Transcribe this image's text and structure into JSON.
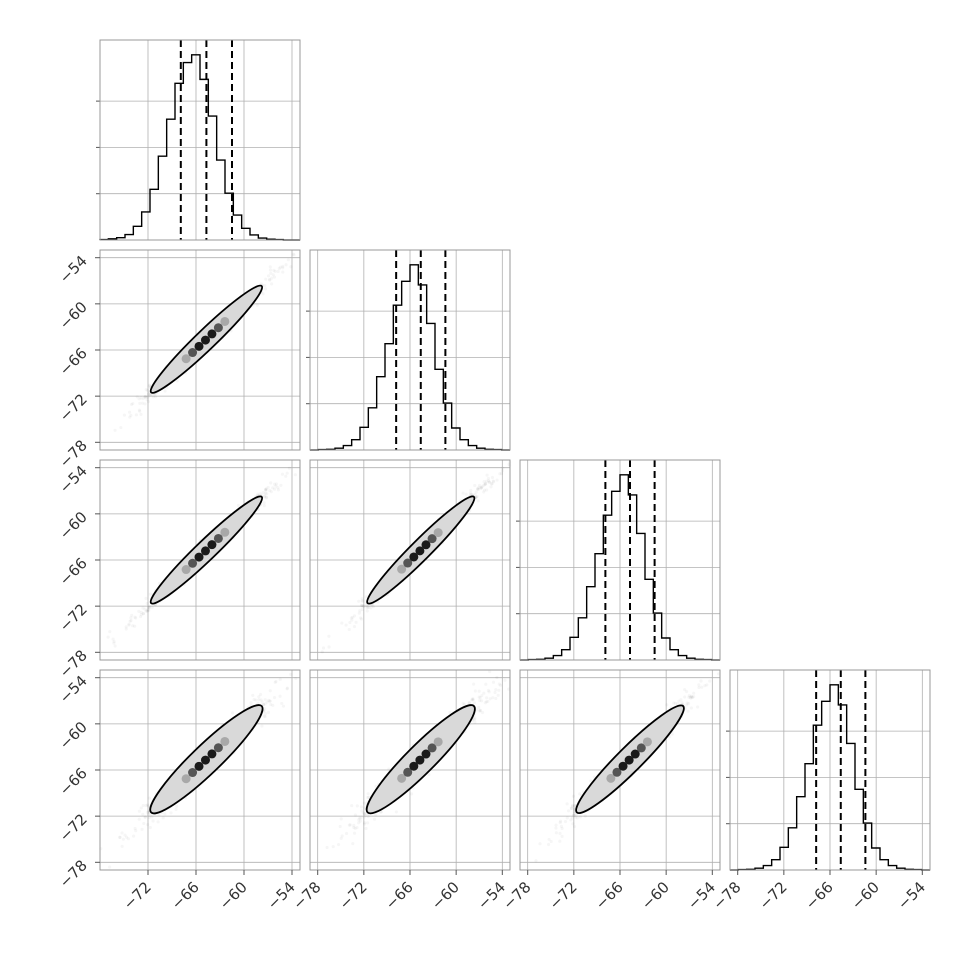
{
  "chart_data": {
    "type": "corner",
    "title": "",
    "n_params": 4,
    "param_labels": [
      "",
      "",
      "",
      ""
    ],
    "quantile_lines": [
      0.16,
      0.5,
      0.84
    ],
    "grid": true,
    "colors": {
      "hist": "#000000",
      "contour_fill": "#d9d9d9",
      "points": "#000000"
    },
    "params": [
      {
        "range": [
          -78,
          -53
        ],
        "ticks": [
          -72,
          -66,
          -60,
          -54
        ],
        "mean": -64.7,
        "std": 3.2,
        "quantiles": [
          -67.9,
          -64.7,
          -61.5
        ]
      },
      {
        "range": [
          -79,
          -53
        ],
        "ticks": [
          -78,
          -72,
          -66,
          -60,
          -54
        ],
        "mean": -64.6,
        "std": 3.2,
        "quantiles": [
          -67.8,
          -64.6,
          -61.4
        ]
      },
      {
        "range": [
          -79,
          -53
        ],
        "ticks": [
          -78,
          -72,
          -66,
          -60,
          -54
        ],
        "mean": -64.7,
        "std": 3.2,
        "quantiles": [
          -67.9,
          -64.7,
          -61.5
        ]
      },
      {
        "range": [
          -79,
          -53
        ],
        "ticks": [
          -78,
          -72,
          -66,
          -60,
          -54
        ],
        "mean": -64.6,
        "std": 3.2,
        "quantiles": [
          -67.8,
          -64.6,
          -61.4
        ]
      }
    ],
    "y_range_2d": [
      -79,
      -53
    ],
    "y_ticks": [
      -54,
      -60,
      -66,
      -72,
      -78
    ],
    "histograms": [
      {
        "param": 0,
        "bins": 24,
        "counts": [
          1,
          3,
          6,
          14,
          35,
          72,
          130,
          215,
          310,
          402,
          455,
          475,
          412,
          318,
          205,
          120,
          64,
          30,
          13,
          5,
          2,
          1,
          0,
          0
        ]
      },
      {
        "param": 1,
        "bins": 24,
        "counts": [
          0,
          1,
          2,
          5,
          12,
          28,
          62,
          115,
          200,
          290,
          395,
          460,
          505,
          450,
          345,
          220,
          128,
          60,
          28,
          12,
          5,
          2,
          1,
          0
        ]
      },
      {
        "param": 2,
        "bins": 24,
        "counts": [
          0,
          1,
          2,
          5,
          12,
          28,
          62,
          115,
          200,
          290,
          395,
          460,
          505,
          450,
          345,
          220,
          128,
          60,
          28,
          12,
          5,
          2,
          1,
          0
        ]
      },
      {
        "param": 3,
        "bins": 24,
        "counts": [
          0,
          1,
          2,
          5,
          12,
          28,
          62,
          115,
          200,
          290,
          395,
          460,
          505,
          450,
          345,
          220,
          128,
          60,
          28,
          12,
          5,
          2,
          1,
          0
        ]
      }
    ],
    "pairs": [
      {
        "x_param": 0,
        "y_param": 1,
        "correlation": 0.99
      },
      {
        "x_param": 0,
        "y_param": 2,
        "correlation": 0.99
      },
      {
        "x_param": 1,
        "y_param": 2,
        "correlation": 0.99
      },
      {
        "x_param": 0,
        "y_param": 3,
        "correlation": 0.97
      },
      {
        "x_param": 1,
        "y_param": 3,
        "correlation": 0.97
      },
      {
        "x_param": 2,
        "y_param": 3,
        "correlation": 0.98
      }
    ]
  }
}
